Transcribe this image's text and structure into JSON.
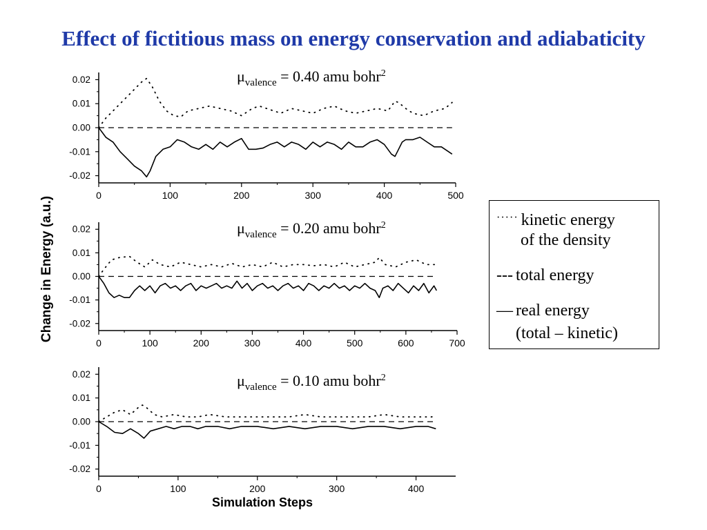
{
  "slide": {
    "title": "Effect of fictitious mass on energy conservation and adiabaticity"
  },
  "legend": {
    "kinetic_symbol": "·····",
    "kinetic_line1": "kinetic energy",
    "kinetic_line2": "of the density",
    "total_symbol": "---",
    "total_label": "total energy",
    "real_symbol": "—",
    "real_line1": "real energy",
    "real_line2": "(total – kinetic)"
  },
  "colors": {
    "title": "#1f3aa8",
    "axes": "#000000"
  },
  "chart_data": [
    {
      "type": "line",
      "annotation": {
        "symbol": "μ",
        "subscript": "valence",
        "text": " = 0.40 amu bohr",
        "superscript": "2"
      },
      "xlabel": "",
      "ylabel": "Change in Energy (a.u.)",
      "xlim": [
        0,
        500
      ],
      "ylim": [
        -0.023,
        0.023
      ],
      "xticks": [
        0,
        100,
        200,
        300,
        400,
        500
      ],
      "yticks": [
        -0.02,
        -0.01,
        0.0,
        0.01,
        0.02
      ],
      "ytick_labels": [
        "-0.02",
        "-0.01",
        "0.00",
        "0.01",
        "0.02"
      ],
      "grid": false,
      "series": [
        {
          "name": "kinetic energy of the density",
          "style": "dotted",
          "x": [
            0,
            10,
            20,
            30,
            40,
            50,
            60,
            67,
            75,
            85,
            95,
            105,
            115,
            125,
            140,
            155,
            170,
            185,
            200,
            215,
            225,
            240,
            255,
            270,
            285,
            300,
            315,
            330,
            345,
            360,
            375,
            390,
            405,
            415,
            420,
            430,
            440,
            455,
            470,
            485,
            495
          ],
          "y": [
            0.0,
            0.004,
            0.007,
            0.01,
            0.013,
            0.016,
            0.019,
            0.0205,
            0.017,
            0.011,
            0.007,
            0.005,
            0.0045,
            0.007,
            0.008,
            0.009,
            0.008,
            0.007,
            0.005,
            0.008,
            0.009,
            0.0075,
            0.006,
            0.008,
            0.007,
            0.006,
            0.008,
            0.009,
            0.007,
            0.006,
            0.007,
            0.008,
            0.007,
            0.011,
            0.0105,
            0.008,
            0.006,
            0.005,
            0.007,
            0.008,
            0.0105
          ]
        },
        {
          "name": "total energy",
          "style": "dashed",
          "x": [
            0,
            495
          ],
          "y": [
            0.0,
            0.0
          ]
        },
        {
          "name": "real energy (total – kinetic)",
          "style": "solid",
          "x": [
            0,
            5,
            10,
            20,
            30,
            40,
            50,
            60,
            67,
            72,
            80,
            90,
            100,
            110,
            120,
            130,
            140,
            150,
            160,
            170,
            180,
            190,
            200,
            210,
            220,
            230,
            240,
            250,
            260,
            270,
            280,
            290,
            300,
            310,
            320,
            330,
            340,
            350,
            360,
            370,
            380,
            390,
            400,
            410,
            415,
            420,
            425,
            430,
            440,
            450,
            460,
            470,
            480,
            490,
            495
          ],
          "y": [
            0.0,
            -0.002,
            -0.004,
            -0.006,
            -0.01,
            -0.013,
            -0.016,
            -0.018,
            -0.0205,
            -0.018,
            -0.012,
            -0.009,
            -0.008,
            -0.005,
            -0.006,
            -0.008,
            -0.009,
            -0.007,
            -0.009,
            -0.006,
            -0.008,
            -0.006,
            -0.0045,
            -0.009,
            -0.009,
            -0.0085,
            -0.007,
            -0.006,
            -0.008,
            -0.006,
            -0.007,
            -0.009,
            -0.006,
            -0.008,
            -0.006,
            -0.007,
            -0.009,
            -0.006,
            -0.008,
            -0.008,
            -0.006,
            -0.005,
            -0.007,
            -0.011,
            -0.012,
            -0.009,
            -0.006,
            -0.005,
            -0.005,
            -0.004,
            -0.006,
            -0.008,
            -0.008,
            -0.01,
            -0.011
          ]
        }
      ]
    },
    {
      "type": "line",
      "annotation": {
        "symbol": "μ",
        "subscript": "valence",
        "text": " = 0.20 amu bohr",
        "superscript": "2"
      },
      "xlabel": "",
      "ylabel": "Change in Energy (a.u.)",
      "xlim": [
        0,
        700
      ],
      "ylim": [
        -0.023,
        0.023
      ],
      "xticks": [
        0,
        100,
        200,
        300,
        400,
        500,
        600,
        700
      ],
      "yticks": [
        -0.02,
        -0.01,
        0.0,
        0.01,
        0.02
      ],
      "ytick_labels": [
        "-0.02",
        "-0.01",
        "0.00",
        "0.01",
        "0.02"
      ],
      "grid": false,
      "series": [
        {
          "name": "kinetic energy of the density",
          "style": "dotted",
          "x": [
            0,
            10,
            25,
            40,
            60,
            75,
            90,
            105,
            120,
            140,
            160,
            180,
            200,
            220,
            240,
            260,
            280,
            300,
            320,
            340,
            360,
            380,
            400,
            420,
            440,
            460,
            480,
            500,
            520,
            540,
            548,
            560,
            580,
            600,
            620,
            640,
            660
          ],
          "y": [
            0.0,
            0.003,
            0.007,
            0.008,
            0.0085,
            0.006,
            0.004,
            0.007,
            0.005,
            0.004,
            0.006,
            0.005,
            0.004,
            0.005,
            0.004,
            0.0055,
            0.004,
            0.005,
            0.004,
            0.006,
            0.004,
            0.005,
            0.005,
            0.0045,
            0.005,
            0.004,
            0.006,
            0.004,
            0.005,
            0.006,
            0.008,
            0.005,
            0.004,
            0.006,
            0.007,
            0.005,
            0.005
          ]
        },
        {
          "name": "total energy",
          "style": "dashed",
          "x": [
            0,
            660
          ],
          "y": [
            0.0,
            0.0
          ]
        },
        {
          "name": "real energy (total – kinetic)",
          "style": "solid",
          "x": [
            0,
            10,
            20,
            30,
            40,
            50,
            60,
            70,
            80,
            90,
            100,
            110,
            120,
            130,
            140,
            150,
            160,
            170,
            180,
            190,
            200,
            210,
            220,
            230,
            240,
            250,
            260,
            270,
            280,
            290,
            300,
            310,
            320,
            330,
            340,
            350,
            360,
            370,
            380,
            390,
            400,
            410,
            420,
            430,
            440,
            450,
            460,
            470,
            480,
            490,
            500,
            510,
            520,
            530,
            540,
            548,
            555,
            565,
            575,
            585,
            595,
            605,
            615,
            625,
            635,
            645,
            655,
            660
          ],
          "y": [
            0.0,
            -0.003,
            -0.007,
            -0.009,
            -0.008,
            -0.009,
            -0.009,
            -0.006,
            -0.004,
            -0.006,
            -0.004,
            -0.007,
            -0.004,
            -0.003,
            -0.005,
            -0.004,
            -0.006,
            -0.004,
            -0.003,
            -0.006,
            -0.004,
            -0.005,
            -0.004,
            -0.003,
            -0.005,
            -0.004,
            -0.005,
            -0.002,
            -0.005,
            -0.003,
            -0.006,
            -0.004,
            -0.003,
            -0.005,
            -0.004,
            -0.006,
            -0.004,
            -0.003,
            -0.005,
            -0.004,
            -0.006,
            -0.003,
            -0.004,
            -0.006,
            -0.004,
            -0.005,
            -0.003,
            -0.005,
            -0.004,
            -0.006,
            -0.004,
            -0.005,
            -0.003,
            -0.005,
            -0.006,
            -0.009,
            -0.005,
            -0.004,
            -0.006,
            -0.003,
            -0.005,
            -0.007,
            -0.004,
            -0.006,
            -0.003,
            -0.007,
            -0.004,
            -0.006
          ]
        }
      ]
    },
    {
      "type": "line",
      "annotation": {
        "symbol": "μ",
        "subscript": "valence",
        "text": " = 0.10 amu bohr",
        "superscript": "2"
      },
      "xlabel": "Simulation Steps",
      "ylabel": "Change in Energy (a.u.)",
      "xlim": [
        0,
        450
      ],
      "ylim": [
        -0.023,
        0.023
      ],
      "xticks": [
        0,
        100,
        200,
        300,
        400
      ],
      "yticks": [
        -0.02,
        -0.01,
        0.0,
        0.01,
        0.02
      ],
      "ytick_labels": [
        "-0.02",
        "-0.01",
        "0.00",
        "0.01",
        "0.02"
      ],
      "grid": false,
      "series": [
        {
          "name": "kinetic energy of the density",
          "style": "dotted",
          "x": [
            0,
            10,
            20,
            30,
            40,
            50,
            55,
            60,
            70,
            80,
            95,
            110,
            125,
            140,
            160,
            180,
            200,
            220,
            240,
            260,
            280,
            300,
            320,
            340,
            360,
            380,
            400,
            420,
            425
          ],
          "y": [
            0.0,
            0.002,
            0.004,
            0.005,
            0.003,
            0.006,
            0.007,
            0.006,
            0.003,
            0.002,
            0.003,
            0.002,
            0.002,
            0.003,
            0.002,
            0.002,
            0.002,
            0.002,
            0.002,
            0.003,
            0.002,
            0.002,
            0.002,
            0.002,
            0.003,
            0.002,
            0.002,
            0.002,
            0.003
          ]
        },
        {
          "name": "total energy",
          "style": "dashed",
          "x": [
            0,
            425
          ],
          "y": [
            0.0,
            0.0
          ]
        },
        {
          "name": "real energy (total – kinetic)",
          "style": "solid",
          "x": [
            0,
            10,
            20,
            30,
            40,
            50,
            57,
            65,
            75,
            85,
            95,
            105,
            115,
            125,
            135,
            150,
            165,
            180,
            200,
            220,
            240,
            260,
            280,
            300,
            320,
            340,
            360,
            380,
            400,
            415,
            425
          ],
          "y": [
            0.0,
            -0.002,
            -0.0045,
            -0.005,
            -0.003,
            -0.005,
            -0.007,
            -0.004,
            -0.003,
            -0.002,
            -0.003,
            -0.002,
            -0.002,
            -0.003,
            -0.002,
            -0.002,
            -0.003,
            -0.002,
            -0.002,
            -0.003,
            -0.002,
            -0.003,
            -0.002,
            -0.002,
            -0.003,
            -0.002,
            -0.002,
            -0.003,
            -0.002,
            -0.002,
            -0.003
          ]
        }
      ]
    }
  ]
}
